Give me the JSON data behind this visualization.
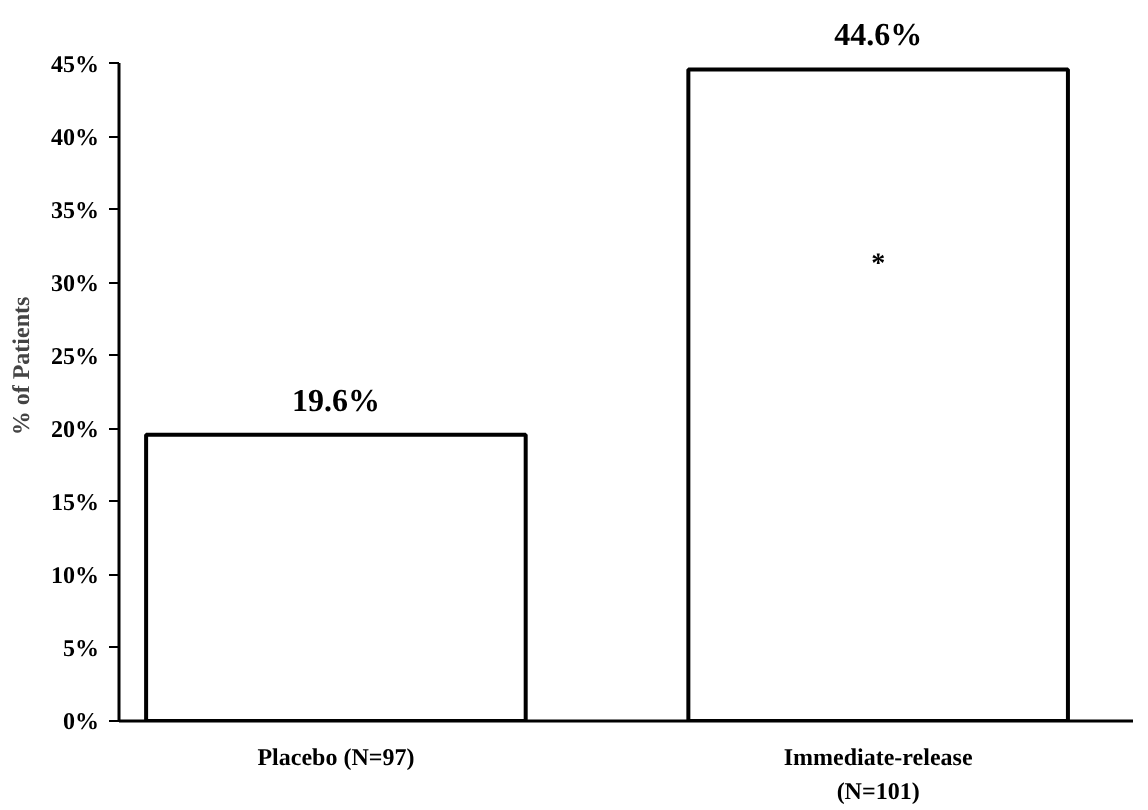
{
  "chart_data": {
    "type": "bar",
    "ylabel": "% of Patients",
    "categories": [
      "Placebo (N=97)",
      "Immediate-release (N=101)"
    ],
    "values": [
      19.6,
      44.6
    ],
    "color": "#ffffff",
    "value_labels": [
      "19.6%",
      "44.6%"
    ],
    "ylim": [
      0,
      45
    ],
    "yticks": [
      {
        "value": 0,
        "label": "0%"
      },
      {
        "value": 5,
        "label": "5%"
      },
      {
        "value": 10,
        "label": "10%"
      },
      {
        "value": 15,
        "label": "15%"
      },
      {
        "value": 20,
        "label": "20%"
      },
      {
        "value": 25,
        "label": "25%"
      },
      {
        "value": 30,
        "label": "30%"
      },
      {
        "value": 35,
        "label": "35%"
      },
      {
        "value": 40,
        "label": "40%"
      },
      {
        "value": 45,
        "label": "45%"
      }
    ],
    "annotations": [
      "*"
    ],
    "grid": false
  }
}
